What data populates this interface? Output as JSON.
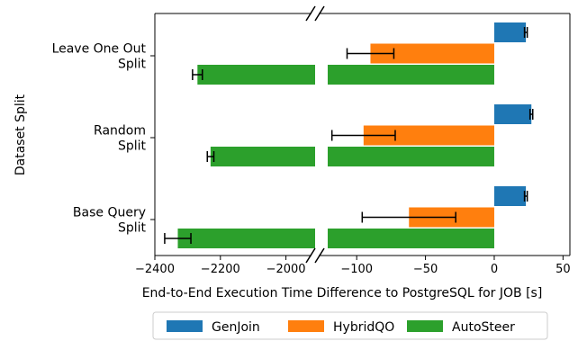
{
  "chart_data": {
    "type": "bar",
    "orientation": "horizontal",
    "title": "",
    "xlabel": "End-to-End Execution Time Difference to PostgreSQL for JOB [s]",
    "ylabel": "Dataset Split",
    "broken_x_axis": true,
    "xlim_left": [
      -2400,
      -1900
    ],
    "xlim_right": [
      -125,
      55
    ],
    "xticks_left": [
      "-2400",
      "-2200",
      "-2000"
    ],
    "xticks_right": [
      "-100",
      "-50",
      "0",
      "50"
    ],
    "categories": [
      {
        "lines": [
          "Leave One Out",
          "Split"
        ]
      },
      {
        "lines": [
          "Random",
          "Split"
        ]
      },
      {
        "lines": [
          "Base Query",
          "Split"
        ]
      }
    ],
    "series": [
      {
        "name": "GenJoin",
        "color": "#1f77b4",
        "values": [
          23,
          27,
          23
        ],
        "errors": [
          1,
          1,
          1
        ]
      },
      {
        "name": "HybridQO",
        "color": "#ff7f0e",
        "values": [
          -90,
          -95,
          -62
        ],
        "errors": [
          17,
          23,
          34
        ]
      },
      {
        "name": "AutoSteer",
        "color": "#2ca02c",
        "values": [
          -2270,
          -2230,
          -2330
        ],
        "errors": [
          15,
          10,
          40
        ]
      }
    ],
    "legend_position": "bottom-center",
    "grid": false
  }
}
